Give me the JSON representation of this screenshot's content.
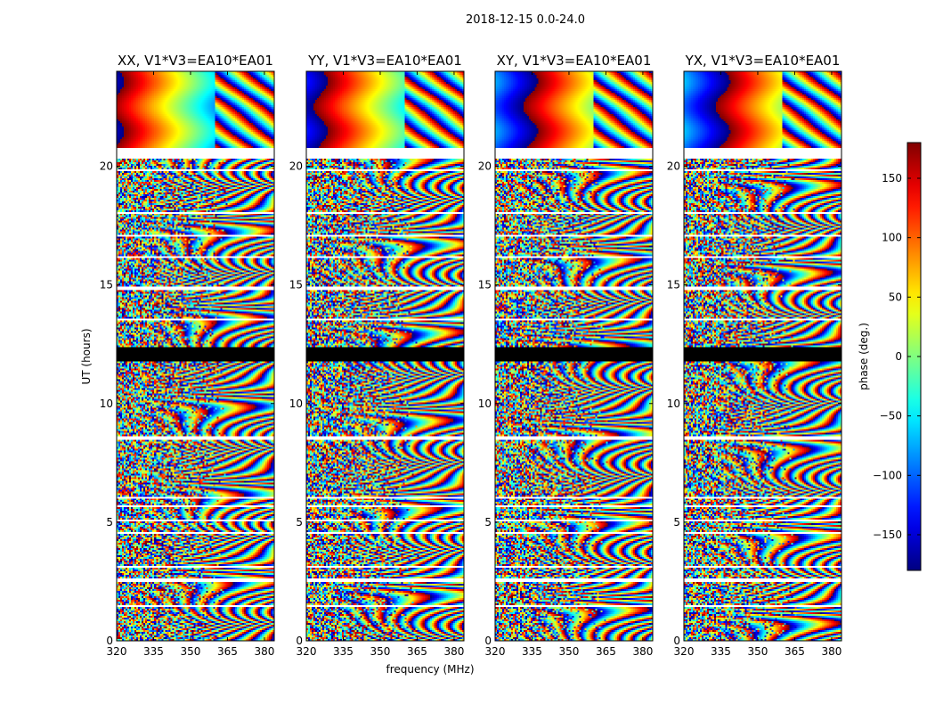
{
  "figure": {
    "suptitle": "2018-12-15 0.0-24.0"
  },
  "chart_data": {
    "type": "heatmap",
    "panels": [
      {
        "title": "XX, V1*V3=EA10*EA01",
        "pol": "XX",
        "base_offset": 0
      },
      {
        "title": "YY, V1*V3=EA10*EA01",
        "pol": "YY",
        "base_offset": 1.2
      },
      {
        "title": "XY, V1*V3=EA10*EA01",
        "pol": "XY",
        "base_offset": 3.0
      },
      {
        "title": "YX, V1*V3=EA10*EA01",
        "pol": "YX",
        "base_offset": 3.3
      }
    ],
    "xlabel": "frequency (MHz)",
    "ylabel": "UT (hours)",
    "xlim": [
      320,
      384
    ],
    "ylim": [
      0,
      24
    ],
    "xticks": [
      "320",
      "335",
      "350",
      "365",
      "380"
    ],
    "yticks": [
      "0",
      "5",
      "10",
      "15",
      "20"
    ],
    "colorbar": {
      "label": "phase (deg.)",
      "range": [
        -180,
        180
      ],
      "ticks": [
        "150",
        "100",
        "50",
        "0",
        "−50",
        "−100",
        "−150"
      ],
      "tick_values": [
        150,
        100,
        50,
        0,
        -50,
        -100,
        -150
      ],
      "colormap": "jet"
    },
    "flagged_blank_hours": [
      [
        20.3,
        20.8
      ],
      [
        19.8,
        19.9
      ],
      [
        18.0,
        18.1
      ],
      [
        17.0,
        17.1
      ],
      [
        16.1,
        16.2
      ],
      [
        14.8,
        14.9
      ],
      [
        13.5,
        13.6
      ],
      [
        8.5,
        8.6
      ],
      [
        6.0,
        6.1
      ],
      [
        5.6,
        5.7
      ],
      [
        5.0,
        5.1
      ],
      [
        4.5,
        4.6
      ],
      [
        3.05,
        3.15
      ],
      [
        2.5,
        2.6
      ],
      [
        1.4,
        1.5
      ]
    ],
    "flagged_black_hours": [
      [
        11.8,
        12.4
      ]
    ],
    "coherent_hours": [
      [
        20.8,
        24.0
      ]
    ],
    "colors": {
      "background": "#ffffff",
      "blank": "#ffffff",
      "flagged": "#000000"
    }
  }
}
